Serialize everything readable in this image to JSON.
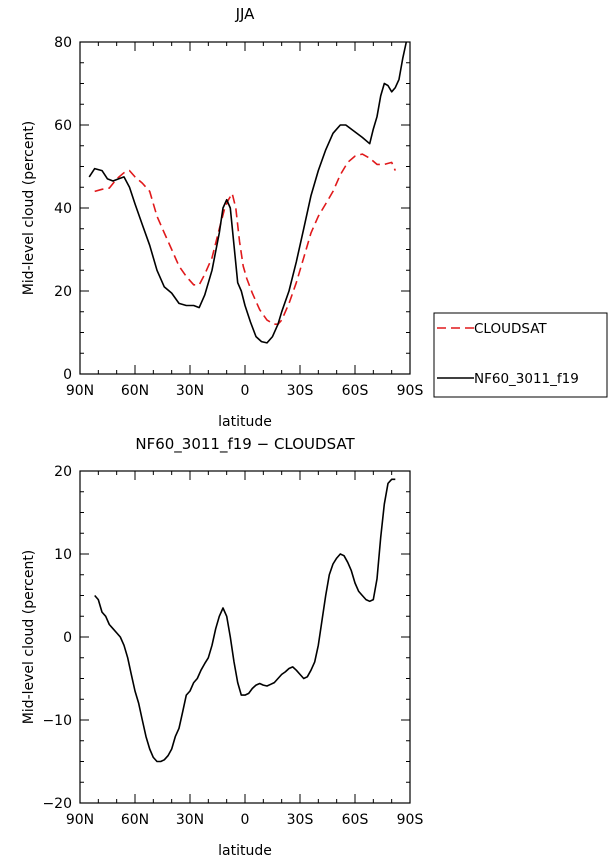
{
  "chart_data": [
    {
      "type": "line",
      "title": "JJA",
      "xlabel": "latitude",
      "ylabel": "Mid-level cloud (percent)",
      "xlim": [
        90,
        -90
      ],
      "ylim": [
        0,
        80
      ],
      "x_ticks": [
        90,
        60,
        30,
        0,
        -30,
        -60,
        -90
      ],
      "x_tick_labels": [
        "90N",
        "60N",
        "30N",
        "0",
        "30S",
        "60S",
        "90S"
      ],
      "y_ticks": [
        0,
        20,
        40,
        60,
        80
      ],
      "y_tick_labels": [
        "0",
        "20",
        "40",
        "60",
        "80"
      ],
      "legend": {
        "placement": "right",
        "entries": [
          "CLOUDSAT",
          "NF60_3011_f19"
        ]
      },
      "series": [
        {
          "name": "CLOUDSAT",
          "color": "#e0191b",
          "dash": "dashed",
          "x": [
            82,
            78,
            74,
            70,
            66,
            63,
            60,
            56,
            52,
            48,
            44,
            40,
            36,
            32,
            28,
            25,
            22,
            18,
            14,
            11,
            9,
            7,
            5,
            3,
            1,
            -1,
            -4,
            -8,
            -12,
            -16,
            -18,
            -20,
            -24,
            -28,
            -32,
            -36,
            -40,
            -44,
            -48,
            -52,
            -56,
            -60,
            -64,
            -68,
            -72,
            -76,
            -80,
            -82
          ],
          "y": [
            44,
            44.5,
            44.8,
            47,
            48.5,
            49,
            47.5,
            46,
            44,
            38,
            34,
            30,
            26,
            23.5,
            21.5,
            21.5,
            24,
            28,
            35,
            40,
            42,
            43.5,
            40,
            32,
            26,
            23,
            19.5,
            15.5,
            13,
            12,
            12,
            13,
            17,
            22,
            28,
            34,
            38,
            41,
            44,
            48,
            51,
            52.5,
            53,
            52,
            50.5,
            50.5,
            51,
            49
          ]
        },
        {
          "name": "NF60_3011_f19",
          "color": "#000000",
          "dash": "solid",
          "x": [
            85,
            82,
            78,
            75,
            72,
            69,
            66,
            63,
            60,
            56,
            52,
            48,
            44,
            40,
            36,
            32,
            28,
            25,
            22,
            18,
            14,
            12,
            10,
            8,
            6,
            4,
            2,
            0,
            -3,
            -6,
            -9,
            -12,
            -15,
            -18,
            -20,
            -24,
            -28,
            -32,
            -36,
            -40,
            -44,
            -48,
            -52,
            -55,
            -58,
            -61,
            -64,
            -68,
            -70,
            -72,
            -74,
            -76,
            -78,
            -80,
            -82,
            -84,
            -86,
            -88
          ],
          "y": [
            47.5,
            49.5,
            49,
            47,
            46.5,
            47,
            47.5,
            45,
            41,
            36,
            31,
            25,
            21,
            19.5,
            17,
            16.5,
            16.5,
            16,
            19,
            25,
            34,
            40,
            42,
            40,
            31,
            22,
            20,
            16.5,
            12.5,
            9,
            7.8,
            7.5,
            9,
            12,
            15,
            20,
            27,
            35,
            43,
            49,
            54,
            58,
            60,
            60,
            59,
            58,
            57,
            55.5,
            59,
            62,
            67,
            70,
            69.5,
            68,
            69,
            71,
            76,
            80
          ]
        }
      ]
    },
    {
      "type": "line",
      "title": "NF60_3011_f19 − CLOUDSAT",
      "xlabel": "latitude",
      "ylabel": "Mid-level cloud (percent)",
      "xlim": [
        90,
        -90
      ],
      "ylim": [
        -20,
        20
      ],
      "x_ticks": [
        90,
        60,
        30,
        0,
        -30,
        -60,
        -90
      ],
      "x_tick_labels": [
        "90N",
        "60N",
        "30N",
        "0",
        "30S",
        "60S",
        "90S"
      ],
      "y_ticks": [
        -20,
        -10,
        0,
        10,
        20
      ],
      "y_tick_labels": [
        "−20",
        "−10",
        "0",
        "10",
        "20"
      ],
      "series": [
        {
          "color": "#000000",
          "dash": "solid",
          "x": [
            82,
            80,
            78,
            76,
            74,
            72,
            70,
            68,
            66,
            64,
            62,
            60,
            58,
            56,
            54,
            52,
            50,
            48,
            46,
            44,
            42,
            40,
            38,
            36,
            34,
            32,
            30,
            28,
            26,
            24,
            22,
            20,
            18,
            16,
            14,
            12,
            10,
            8,
            6,
            4,
            2,
            0,
            -2,
            -4,
            -6,
            -8,
            -10,
            -12,
            -14,
            -16,
            -18,
            -20,
            -22,
            -24,
            -26,
            -28,
            -30,
            -32,
            -34,
            -36,
            -38,
            -40,
            -42,
            -44,
            -46,
            -48,
            -50,
            -52,
            -54,
            -56,
            -58,
            -60,
            -62,
            -64,
            -66,
            -68,
            -70,
            -72,
            -74,
            -76,
            -78,
            -80,
            -82
          ],
          "y": [
            5,
            4.5,
            3,
            2.5,
            1.5,
            1,
            0.5,
            0,
            -1,
            -2.5,
            -4.5,
            -6.5,
            -8,
            -10,
            -12,
            -13.5,
            -14.5,
            -15,
            -15,
            -14.8,
            -14.3,
            -13.5,
            -12,
            -11,
            -9,
            -7,
            -6.5,
            -5.5,
            -5,
            -4,
            -3.2,
            -2.5,
            -1,
            1,
            2.5,
            3.5,
            2.5,
            0,
            -3,
            -5.5,
            -7,
            -7,
            -6.8,
            -6.2,
            -5.8,
            -5.6,
            -5.8,
            -5.9,
            -5.7,
            -5.5,
            -5,
            -4.5,
            -4.2,
            -3.8,
            -3.6,
            -4,
            -4.5,
            -5,
            -4.8,
            -4,
            -3,
            -1,
            2,
            5,
            7.5,
            8.8,
            9.5,
            10,
            9.8,
            9,
            8,
            6.5,
            5.5,
            5,
            4.5,
            4.3,
            4.5,
            7,
            12,
            16,
            18.5,
            19,
            19
          ]
        }
      ]
    }
  ]
}
